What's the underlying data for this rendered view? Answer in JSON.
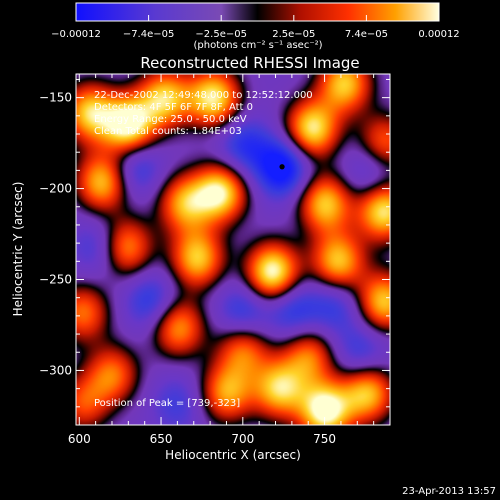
{
  "chart_data": {
    "type": "heatmap",
    "title": "Reconstructed RHESSI Image",
    "xlabel": "Heliocentric X (arcsec)",
    "ylabel": "Heliocentric Y (arcsec)",
    "xlim": [
      598,
      790
    ],
    "ylim": [
      -330,
      -137
    ],
    "x_ticks": [
      600,
      650,
      700,
      750
    ],
    "y_ticks": [
      -150,
      -200,
      -250,
      -300
    ],
    "x_tick_labels": [
      "600",
      "650",
      "700",
      "750"
    ],
    "y_tick_labels": [
      "−150",
      "−200",
      "−250",
      "−300"
    ],
    "info_lines": [
      "22-Dec-2002 12:49:48.000 to 12:52:12.000",
      "Detectors: 4F 5F 6F 7F 8F, Att 0",
      "Energy Range: 25.0 - 50.0 keV",
      "Clean    Total counts: 1.84E+03"
    ],
    "peak_text": "Position of Peak = [739,-323]",
    "peak_position": [
      739,
      -323
    ],
    "marker_position": [
      724,
      -188
    ],
    "colorbar": {
      "range": [
        -0.00012,
        0.00012
      ],
      "tick_labels": [
        "−0.00012",
        "−7.4e−05",
        "−2.5e−05",
        "2.5e−05",
        "7.4e−05",
        "0.00012"
      ],
      "unit_label": "(photons cm⁻² s⁻¹ asec⁻²)"
    },
    "hotspots": [
      {
        "x": 606,
        "y": -158,
        "v": 0.8
      },
      {
        "x": 630,
        "y": -165,
        "v": 1.0
      },
      {
        "x": 652,
        "y": -150,
        "v": 0.8
      },
      {
        "x": 682,
        "y": -150,
        "v": 0.9
      },
      {
        "x": 762,
        "y": -142,
        "v": 0.8
      },
      {
        "x": 742,
        "y": -167,
        "v": 0.9
      },
      {
        "x": 786,
        "y": -175,
        "v": 0.6
      },
      {
        "x": 614,
        "y": -196,
        "v": 0.8
      },
      {
        "x": 664,
        "y": -208,
        "v": 0.7
      },
      {
        "x": 686,
        "y": -202,
        "v": 0.9
      },
      {
        "x": 750,
        "y": -208,
        "v": 0.8
      },
      {
        "x": 786,
        "y": -212,
        "v": 0.9
      },
      {
        "x": 628,
        "y": -232,
        "v": 0.7
      },
      {
        "x": 672,
        "y": -238,
        "v": 0.8
      },
      {
        "x": 718,
        "y": -246,
        "v": 1.0
      },
      {
        "x": 758,
        "y": -240,
        "v": 0.8
      },
      {
        "x": 786,
        "y": -262,
        "v": 0.8
      },
      {
        "x": 602,
        "y": -268,
        "v": 0.6
      },
      {
        "x": 660,
        "y": -276,
        "v": 0.7
      },
      {
        "x": 740,
        "y": -292,
        "v": 0.6
      },
      {
        "x": 700,
        "y": -288,
        "v": 0.6
      },
      {
        "x": 620,
        "y": -302,
        "v": 0.6
      },
      {
        "x": 690,
        "y": -312,
        "v": 0.7
      },
      {
        "x": 722,
        "y": -310,
        "v": 0.8
      },
      {
        "x": 750,
        "y": -322,
        "v": 1.0
      },
      {
        "x": 776,
        "y": -312,
        "v": 0.8
      },
      {
        "x": 602,
        "y": -318,
        "v": 0.5
      },
      {
        "x": 612,
        "y": -232,
        "v": -0.5
      },
      {
        "x": 634,
        "y": -188,
        "v": -0.6
      },
      {
        "x": 644,
        "y": -262,
        "v": -0.6
      },
      {
        "x": 700,
        "y": -176,
        "v": -0.6
      },
      {
        "x": 724,
        "y": -188,
        "v": -1.0
      },
      {
        "x": 700,
        "y": -268,
        "v": -0.6
      },
      {
        "x": 730,
        "y": -266,
        "v": -0.6
      },
      {
        "x": 778,
        "y": -190,
        "v": -0.5
      },
      {
        "x": 756,
        "y": -264,
        "v": -0.5
      },
      {
        "x": 772,
        "y": -290,
        "v": -0.5
      },
      {
        "x": 660,
        "y": -318,
        "v": -0.4
      }
    ]
  },
  "footer": {
    "timestamp": "23-Apr-2013 13:57"
  }
}
